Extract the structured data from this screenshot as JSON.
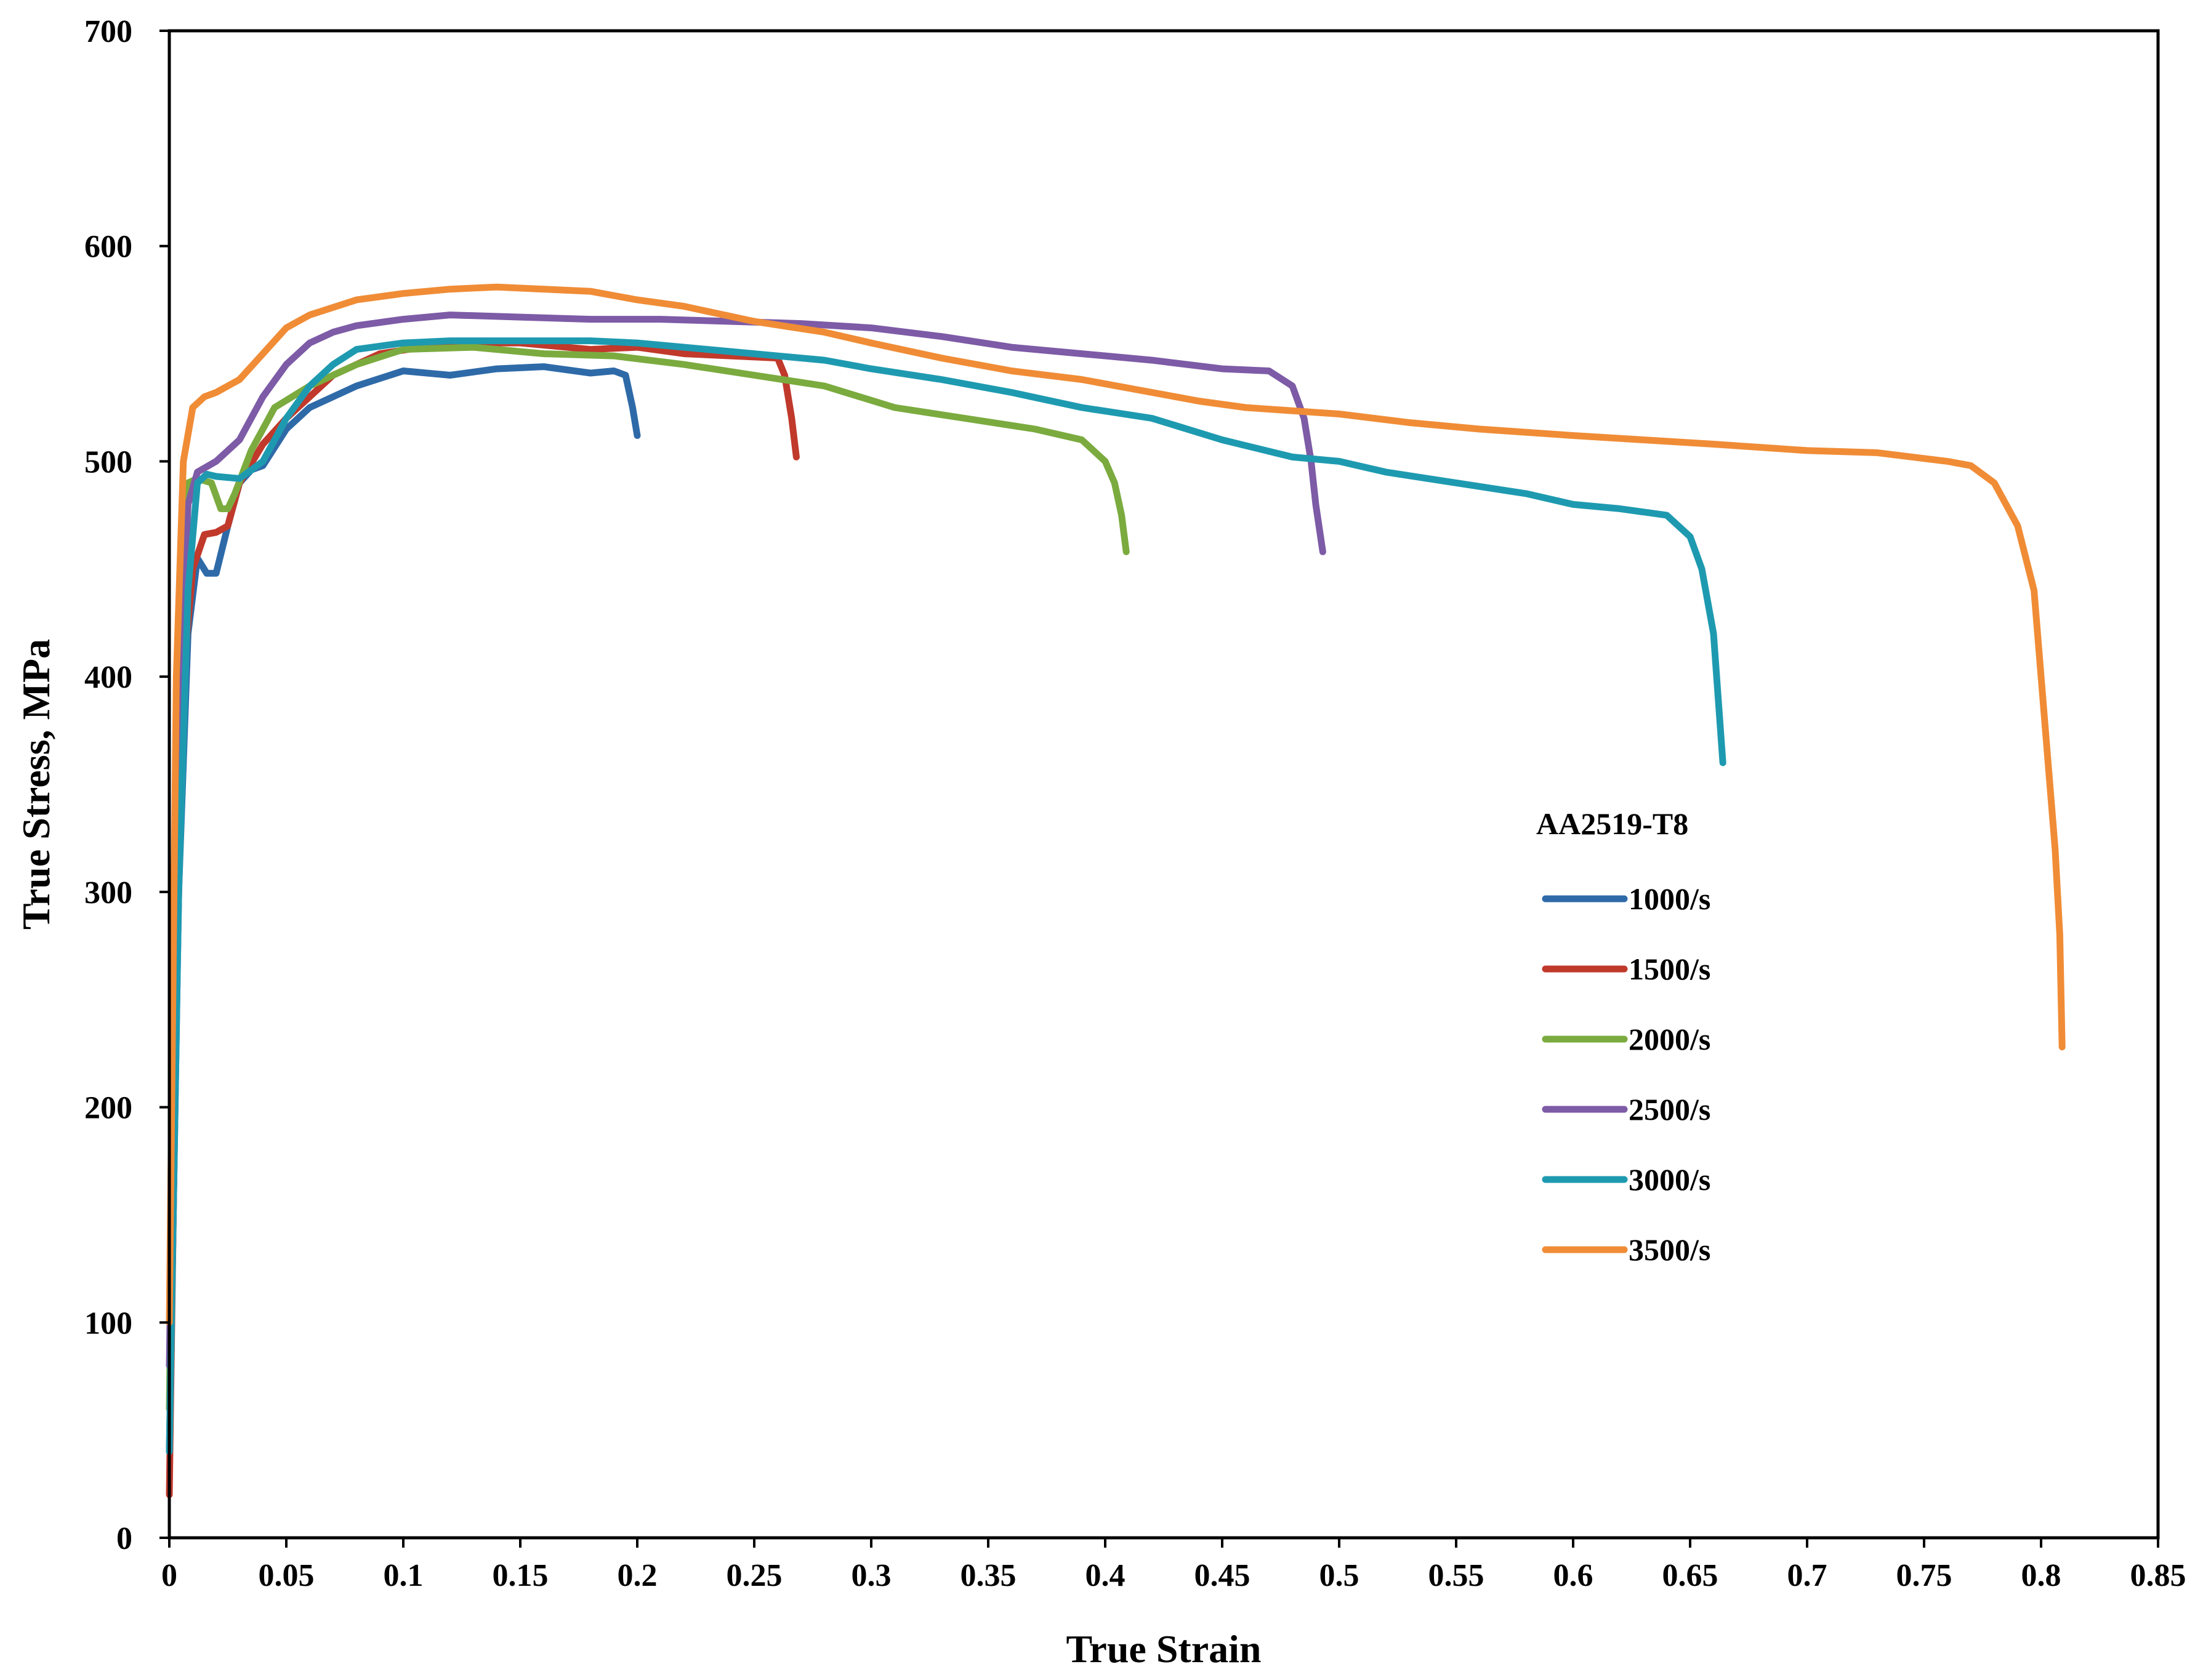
{
  "chart_data": {
    "type": "line",
    "title": "",
    "xlabel": "True Strain",
    "ylabel": "True Stress, MPa",
    "xlim": [
      0,
      0.85
    ],
    "ylim": [
      0,
      700
    ],
    "grid": false,
    "x_ticks": [
      "0",
      "0.05",
      "0.1",
      "0.15",
      "0.2",
      "0.25",
      "0.3",
      "0.35",
      "0.4",
      "0.45",
      "0.5",
      "0.55",
      "0.6",
      "0.65",
      "0.7",
      "0.75",
      "0.8",
      "0.85"
    ],
    "y_ticks": [
      "0",
      "100",
      "200",
      "300",
      "400",
      "500",
      "600",
      "700"
    ],
    "legend": {
      "title": "AA2519-T8",
      "placement": "right-middle"
    },
    "series": [
      {
        "name": "1000/s",
        "color": "#2E6AA8",
        "x": [
          0,
          0.004,
          0.008,
          0.012,
          0.016,
          0.02,
          0.025,
          0.03,
          0.035,
          0.04,
          0.05,
          0.06,
          0.08,
          0.1,
          0.12,
          0.14,
          0.16,
          0.18,
          0.19,
          0.195,
          0.198,
          0.2
        ],
        "y": [
          40,
          300,
          420,
          455,
          448,
          448,
          470,
          490,
          496,
          498,
          515,
          525,
          535,
          542,
          540,
          543,
          544,
          541,
          542,
          540,
          525,
          512
        ]
      },
      {
        "name": "1500/s",
        "color": "#C0392B",
        "x": [
          0,
          0.003,
          0.006,
          0.01,
          0.015,
          0.02,
          0.025,
          0.03,
          0.04,
          0.05,
          0.07,
          0.09,
          0.12,
          0.15,
          0.18,
          0.2,
          0.22,
          0.24,
          0.26,
          0.263,
          0.266,
          0.268
        ],
        "y": [
          20,
          250,
          400,
          450,
          466,
          467,
          470,
          490,
          508,
          520,
          540,
          550,
          555,
          555,
          552,
          553,
          550,
          549,
          548,
          540,
          520,
          502
        ]
      },
      {
        "name": "2000/s",
        "color": "#7BAB3F",
        "x": [
          0,
          0.004,
          0.008,
          0.012,
          0.018,
          0.022,
          0.025,
          0.028,
          0.035,
          0.045,
          0.06,
          0.08,
          0.1,
          0.13,
          0.16,
          0.19,
          0.22,
          0.25,
          0.28,
          0.31,
          0.34,
          0.37,
          0.39,
          0.4,
          0.404,
          0.407,
          0.409
        ],
        "y": [
          60,
          400,
          490,
          492,
          490,
          478,
          478,
          485,
          505,
          525,
          535,
          545,
          552,
          553,
          550,
          549,
          545,
          540,
          535,
          525,
          520,
          515,
          510,
          500,
          490,
          475,
          458
        ]
      },
      {
        "name": "2500/s",
        "color": "#7D5BA6",
        "x": [
          0,
          0.004,
          0.008,
          0.012,
          0.02,
          0.03,
          0.04,
          0.05,
          0.06,
          0.07,
          0.08,
          0.1,
          0.12,
          0.15,
          0.18,
          0.21,
          0.24,
          0.27,
          0.3,
          0.33,
          0.36,
          0.39,
          0.42,
          0.45,
          0.47,
          0.48,
          0.485,
          0.488,
          0.49,
          0.493
        ],
        "y": [
          80,
          380,
          480,
          495,
          500,
          510,
          530,
          545,
          555,
          560,
          563,
          566,
          568,
          567,
          566,
          566,
          565,
          564,
          562,
          558,
          553,
          550,
          547,
          543,
          542,
          535,
          520,
          500,
          480,
          458
        ]
      },
      {
        "name": "3000/s",
        "color": "#1E9AB0",
        "x": [
          0,
          0.004,
          0.008,
          0.012,
          0.016,
          0.02,
          0.03,
          0.04,
          0.05,
          0.06,
          0.07,
          0.08,
          0.1,
          0.12,
          0.15,
          0.18,
          0.2,
          0.22,
          0.25,
          0.28,
          0.3,
          0.33,
          0.36,
          0.39,
          0.42,
          0.45,
          0.48,
          0.5,
          0.52,
          0.55,
          0.58,
          0.6,
          0.62,
          0.64,
          0.65,
          0.655,
          0.66,
          0.662,
          0.664
        ],
        "y": [
          40,
          300,
          440,
          490,
          494,
          493,
          492,
          500,
          520,
          535,
          545,
          552,
          555,
          556,
          556,
          556,
          555,
          553,
          550,
          547,
          543,
          538,
          532,
          525,
          520,
          510,
          502,
          500,
          495,
          490,
          485,
          480,
          478,
          475,
          465,
          450,
          420,
          390,
          360
        ]
      },
      {
        "name": "3500/s",
        "color": "#F08C36",
        "x": [
          0,
          0.003,
          0.006,
          0.01,
          0.015,
          0.02,
          0.03,
          0.04,
          0.05,
          0.06,
          0.08,
          0.1,
          0.12,
          0.14,
          0.16,
          0.18,
          0.2,
          0.22,
          0.25,
          0.28,
          0.3,
          0.33,
          0.36,
          0.39,
          0.42,
          0.44,
          0.46,
          0.5,
          0.53,
          0.56,
          0.6,
          0.63,
          0.66,
          0.7,
          0.73,
          0.76,
          0.77,
          0.78,
          0.79,
          0.797,
          0.8,
          0.803,
          0.806,
          0.808,
          0.809
        ],
        "y": [
          100,
          400,
          500,
          525,
          530,
          532,
          538,
          550,
          562,
          568,
          575,
          578,
          580,
          581,
          580,
          579,
          575,
          572,
          565,
          560,
          555,
          548,
          542,
          538,
          532,
          528,
          525,
          522,
          518,
          515,
          512,
          510,
          508,
          505,
          504,
          500,
          498,
          490,
          470,
          440,
          400,
          360,
          320,
          280,
          228
        ]
      }
    ]
  }
}
